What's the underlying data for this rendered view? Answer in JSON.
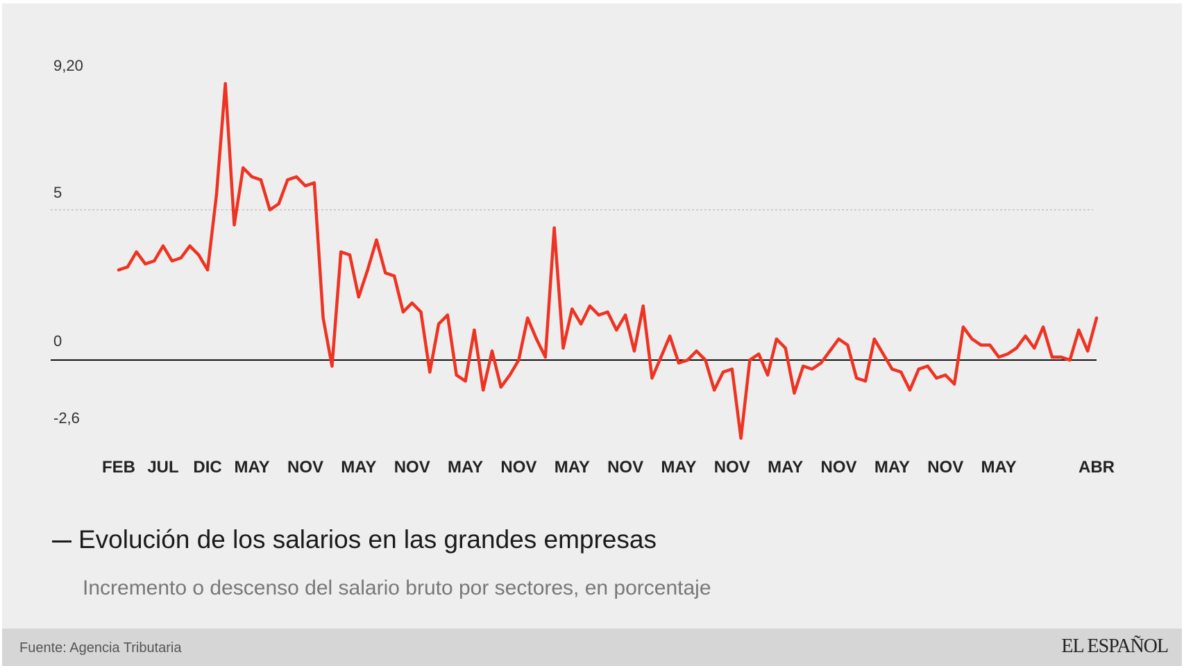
{
  "title": "Evolución de los salarios en las grandes empresas",
  "subtitle": "Incremento o descenso del salario bruto por sectores, en porcentaje",
  "source": "Fuente: Agencia Tributaria",
  "brand": "EL ESPAÑOL",
  "colors": {
    "line": "#ee3322",
    "background": "#eeeeee",
    "footer": "#d6d6d6",
    "zero_line": "#111111",
    "grid": "#bbbbbb"
  },
  "chart_data": {
    "type": "line",
    "title": "Evolución de los salarios en las grandes empresas",
    "subtitle": "Incremento o descenso del salario bruto por sectores, en porcentaje",
    "ylim": [
      -2.6,
      9.2
    ],
    "yticks": [
      {
        "value": 9.2,
        "label": "9,20"
      },
      {
        "value": 5,
        "label": "5"
      },
      {
        "value": 0,
        "label": "0"
      },
      {
        "value": -2.6,
        "label": "-2,6"
      }
    ],
    "xtick_labels": [
      {
        "index": 0,
        "label": "FEB"
      },
      {
        "index": 5,
        "label": "JUL"
      },
      {
        "index": 10,
        "label": "DIC"
      },
      {
        "index": 15,
        "label": "MAY"
      },
      {
        "index": 21,
        "label": "NOV"
      },
      {
        "index": 27,
        "label": "MAY"
      },
      {
        "index": 33,
        "label": "NOV"
      },
      {
        "index": 39,
        "label": "MAY"
      },
      {
        "index": 45,
        "label": "NOV"
      },
      {
        "index": 51,
        "label": "MAY"
      },
      {
        "index": 57,
        "label": "NOV"
      },
      {
        "index": 63,
        "label": "MAY"
      },
      {
        "index": 69,
        "label": "NOV"
      },
      {
        "index": 75,
        "label": "MAY"
      },
      {
        "index": 81,
        "label": "NOV"
      },
      {
        "index": 87,
        "label": "MAY"
      },
      {
        "index": 93,
        "label": "NOV"
      },
      {
        "index": 99,
        "label": "MAY"
      },
      {
        "index": 110,
        "label": "ABR"
      }
    ],
    "grid": "dotted line at 5",
    "legend": "none",
    "series": [
      {
        "values": [
          3.0,
          3.1,
          3.6,
          3.2,
          3.3,
          3.8,
          3.3,
          3.4,
          3.8,
          3.5,
          3.0,
          5.5,
          9.2,
          4.5,
          6.4,
          6.1,
          6.0,
          5.0,
          5.2,
          6.0,
          6.1,
          5.8,
          5.9,
          1.4,
          -0.2,
          3.6,
          3.5,
          2.1,
          3.0,
          4.0,
          2.9,
          2.8,
          1.6,
          1.9,
          1.6,
          -0.4,
          1.2,
          1.5,
          -0.5,
          -0.7,
          1.0,
          -1.0,
          0.3,
          -0.9,
          -0.5,
          0.0,
          1.4,
          0.7,
          0.1,
          4.4,
          0.4,
          1.7,
          1.2,
          1.8,
          1.5,
          1.6,
          1.0,
          1.5,
          0.3,
          1.8,
          -0.6,
          0.1,
          0.8,
          -0.1,
          0.0,
          0.3,
          0.0,
          -1.0,
          -0.4,
          -0.3,
          -2.6,
          0.0,
          0.2,
          -0.5,
          0.7,
          0.4,
          -1.1,
          -0.2,
          -0.3,
          -0.1,
          0.3,
          0.7,
          0.5,
          -0.6,
          -0.7,
          0.7,
          0.2,
          -0.3,
          -0.4,
          -1.0,
          -0.3,
          -0.2,
          -0.6,
          -0.5,
          -0.8,
          1.1,
          0.7,
          0.5,
          0.5,
          0.1,
          0.2,
          0.4,
          0.8,
          0.4,
          1.1,
          0.1,
          0.1,
          0.0,
          1.0,
          0.3,
          1.4
        ]
      }
    ]
  }
}
